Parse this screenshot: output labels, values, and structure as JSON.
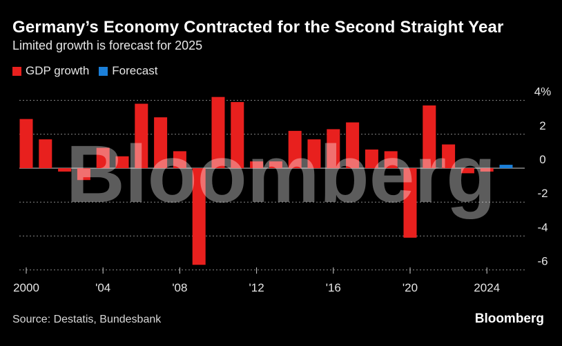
{
  "header": {
    "title": "Germany’s Economy Contracted for the Second Straight Year",
    "subtitle": "Limited growth is forecast for 2025"
  },
  "legend": {
    "items": [
      {
        "label": "GDP growth",
        "color": "#e8201e"
      },
      {
        "label": "Forecast",
        "color": "#1b7fd9"
      }
    ]
  },
  "watermark": "Bloomberg",
  "footer": {
    "source": "Source: Destatis, Bundesbank",
    "brand": "Bloomberg"
  },
  "chart_data": {
    "type": "bar",
    "title": "Germany’s Economy Contracted for the Second Straight Year",
    "subtitle": "Limited growth is forecast for 2025",
    "xlabel": "",
    "ylabel": "",
    "unit": "%",
    "ylim": [
      -7,
      4.5
    ],
    "y_ticks": [
      4,
      2,
      0,
      -2,
      -4,
      -6
    ],
    "y_tick_labels": [
      "4%",
      "2",
      "0",
      "-2",
      "-4",
      "-6"
    ],
    "x_tick_labels": [
      {
        "year": 2000,
        "label": "2000"
      },
      {
        "year": 2004,
        "label": "'04"
      },
      {
        "year": 2008,
        "label": "'08"
      },
      {
        "year": 2012,
        "label": "'12"
      },
      {
        "year": 2016,
        "label": "'16"
      },
      {
        "year": 2020,
        "label": "'20"
      },
      {
        "year": 2024,
        "label": "2024"
      }
    ],
    "grid": true,
    "legend_position": "top-left",
    "series": [
      {
        "name": "GDP growth",
        "color": "#e8201e",
        "points": [
          {
            "year": 2000,
            "value": 2.9
          },
          {
            "year": 2001,
            "value": 1.7
          },
          {
            "year": 2002,
            "value": -0.2
          },
          {
            "year": 2003,
            "value": -0.7
          },
          {
            "year": 2004,
            "value": 1.2
          },
          {
            "year": 2005,
            "value": 0.7
          },
          {
            "year": 2006,
            "value": 3.8
          },
          {
            "year": 2007,
            "value": 3.0
          },
          {
            "year": 2008,
            "value": 1.0
          },
          {
            "year": 2009,
            "value": -5.7
          },
          {
            "year": 2010,
            "value": 4.2
          },
          {
            "year": 2011,
            "value": 3.9
          },
          {
            "year": 2012,
            "value": 0.4
          },
          {
            "year": 2013,
            "value": 0.4
          },
          {
            "year": 2014,
            "value": 2.2
          },
          {
            "year": 2015,
            "value": 1.7
          },
          {
            "year": 2016,
            "value": 2.3
          },
          {
            "year": 2017,
            "value": 2.7
          },
          {
            "year": 2018,
            "value": 1.1
          },
          {
            "year": 2019,
            "value": 1.0
          },
          {
            "year": 2020,
            "value": -4.1
          },
          {
            "year": 2021,
            "value": 3.7
          },
          {
            "year": 2022,
            "value": 1.4
          },
          {
            "year": 2023,
            "value": -0.3
          },
          {
            "year": 2024,
            "value": -0.2
          }
        ]
      },
      {
        "name": "Forecast",
        "color": "#1b7fd9",
        "points": [
          {
            "year": 2025,
            "value": 0.2
          }
        ]
      }
    ]
  }
}
